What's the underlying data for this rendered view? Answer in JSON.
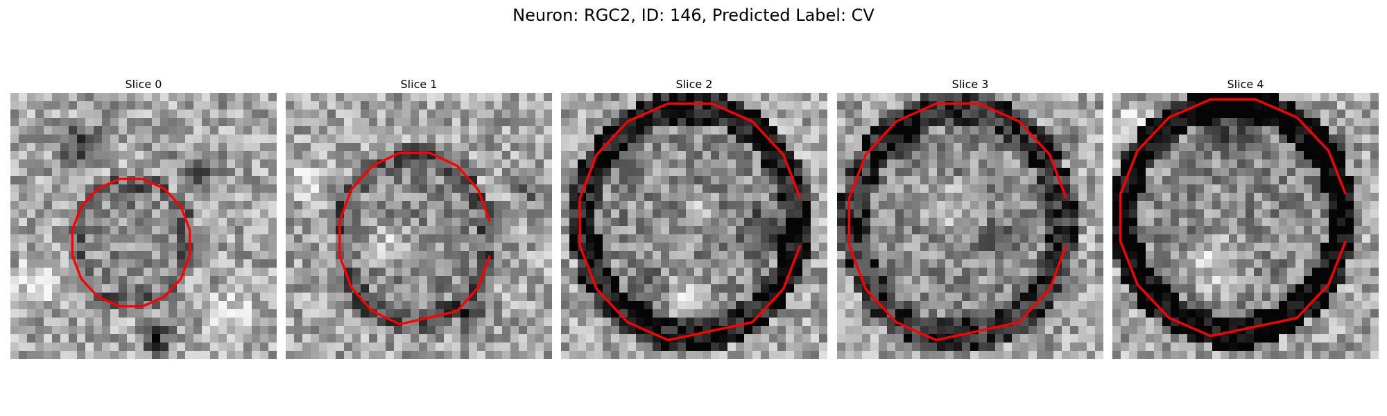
{
  "figure": {
    "title": "Neuron: RGC2, ID: 146, Predicted Label: CV",
    "colormap": "gray",
    "contour_color": "#ff0000"
  },
  "slices": [
    {
      "label": "Slice 0"
    },
    {
      "label": "Slice 1"
    },
    {
      "label": "Slice 2"
    },
    {
      "label": "Slice 3"
    },
    {
      "label": "Slice 4"
    }
  ]
}
